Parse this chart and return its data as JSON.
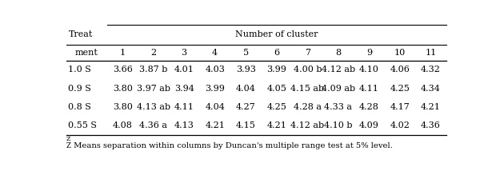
{
  "col_header_row1": "Number of cluster",
  "col_header_row2": [
    "1",
    "2",
    "3",
    "4",
    "5",
    "6",
    "7",
    "8",
    "9",
    "10",
    "11"
  ],
  "row_labels": [
    "1.0 S",
    "0.9 S",
    "0.8 S",
    "0.55 S"
  ],
  "treat_label_line1": "Treat",
  "treat_label_line2": "ment",
  "data": [
    [
      "3.66",
      "3.87 b",
      "4.01",
      "4.03",
      "3.93",
      "3.99",
      "4.00 b",
      "4.12 ab",
      "4.10",
      "4.06",
      "4.32"
    ],
    [
      "3.80",
      "3.97 ab",
      "3.94",
      "3.99",
      "4.04",
      "4.05",
      "4.15 ab",
      "4.09 ab",
      "4.11",
      "4.25",
      "4.34"
    ],
    [
      "3.80",
      "4.13 ab",
      "4.11",
      "4.04",
      "4.27",
      "4.25",
      "4.28 a",
      "4.33 a",
      "4.28",
      "4.17",
      "4.21"
    ],
    [
      "4.08",
      "4.36 a",
      "4.13",
      "4.21",
      "4.15",
      "4.21",
      "4.12 ab",
      "4.10 b",
      "4.09",
      "4.02",
      "4.36"
    ]
  ],
  "footnote_z": "Z",
  "footnote_text": " Means separation within columns by Duncan's multiple range test at 5% level.",
  "bg_color": "#ffffff",
  "text_color": "#000000",
  "font_size": 8.0,
  "footnote_font_size": 7.2
}
